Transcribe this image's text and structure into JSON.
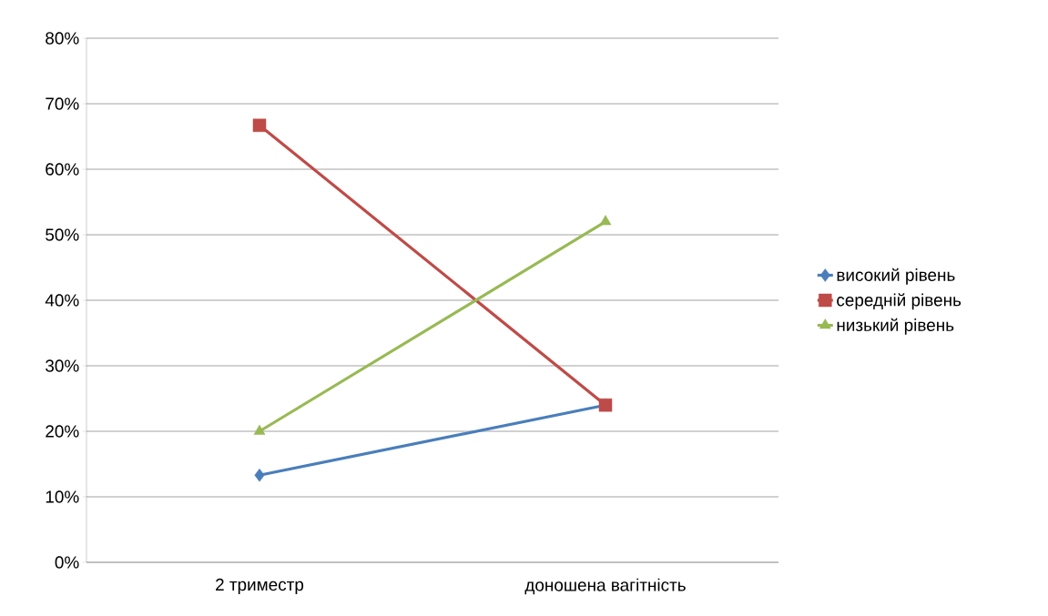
{
  "chart_data": {
    "type": "line",
    "categories": [
      "2 триместр",
      "доношена вагітність"
    ],
    "series": [
      {
        "name": "високий рівень",
        "color": "#4a7ebb",
        "marker": "diamond",
        "values": [
          13.3,
          24
        ]
      },
      {
        "name": "середній рівень",
        "color": "#be4b48",
        "marker": "square",
        "values": [
          66.7,
          24
        ]
      },
      {
        "name": "низький рівень",
        "color": "#98b954",
        "marker": "triangle",
        "values": [
          20,
          52
        ]
      }
    ],
    "ylim": [
      0,
      80
    ],
    "yticks": [
      {
        "value": 0,
        "label": "0%"
      },
      {
        "value": 10,
        "label": "10%"
      },
      {
        "value": 20,
        "label": "20%"
      },
      {
        "value": 30,
        "label": "30%"
      },
      {
        "value": 40,
        "label": "40%"
      },
      {
        "value": 50,
        "label": "50%"
      },
      {
        "value": 60,
        "label": "60%"
      },
      {
        "value": 70,
        "label": "70%"
      },
      {
        "value": 80,
        "label": "80%"
      }
    ],
    "grid": "y",
    "legend": "right",
    "line_style": "solid"
  }
}
